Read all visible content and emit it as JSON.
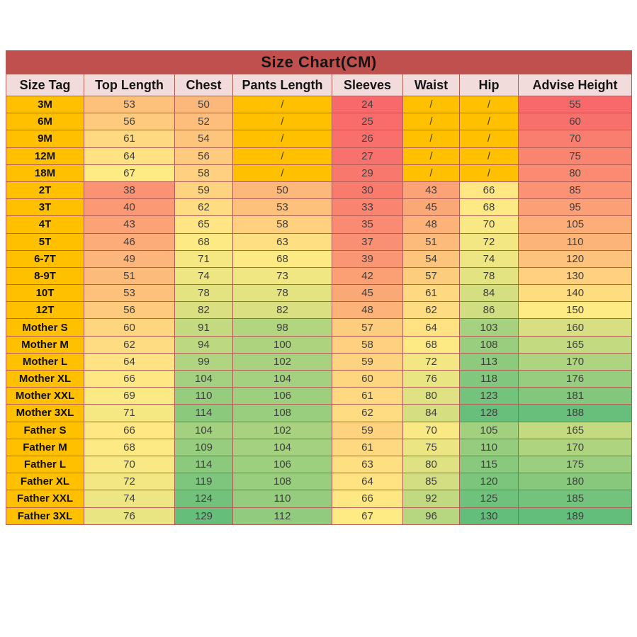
{
  "chart_data": {
    "type": "table",
    "title": "Size Chart(CM)",
    "columns": [
      "Size Tag",
      "Top Length",
      "Chest",
      "Pants Length",
      "Sleeves",
      "Waist",
      "Hip",
      "Advise Height"
    ],
    "rows": [
      {
        "tag": "3M",
        "values": [
          "53",
          "50",
          "/",
          "24",
          "/",
          "/",
          "55"
        ]
      },
      {
        "tag": "6M",
        "values": [
          "56",
          "52",
          "/",
          "25",
          "/",
          "/",
          "60"
        ]
      },
      {
        "tag": "9M",
        "values": [
          "61",
          "54",
          "/",
          "26",
          "/",
          "/",
          "70"
        ]
      },
      {
        "tag": "12M",
        "values": [
          "64",
          "56",
          "/",
          "27",
          "/",
          "/",
          "75"
        ]
      },
      {
        "tag": "18M",
        "values": [
          "67",
          "58",
          "/",
          "29",
          "/",
          "/",
          "80"
        ]
      },
      {
        "tag": "2T",
        "values": [
          "38",
          "59",
          "50",
          "30",
          "43",
          "66",
          "85"
        ]
      },
      {
        "tag": "3T",
        "values": [
          "40",
          "62",
          "53",
          "33",
          "45",
          "68",
          "95"
        ]
      },
      {
        "tag": "4T",
        "values": [
          "43",
          "65",
          "58",
          "35",
          "48",
          "70",
          "105"
        ]
      },
      {
        "tag": "5T",
        "values": [
          "46",
          "68",
          "63",
          "37",
          "51",
          "72",
          "110"
        ]
      },
      {
        "tag": "6-7T",
        "values": [
          "49",
          "71",
          "68",
          "39",
          "54",
          "74",
          "120"
        ]
      },
      {
        "tag": "8-9T",
        "values": [
          "51",
          "74",
          "73",
          "42",
          "57",
          "78",
          "130"
        ]
      },
      {
        "tag": "10T",
        "values": [
          "53",
          "78",
          "78",
          "45",
          "61",
          "84",
          "140"
        ]
      },
      {
        "tag": "12T",
        "values": [
          "56",
          "82",
          "82",
          "48",
          "62",
          "86",
          "150"
        ]
      },
      {
        "tag": "Mother S",
        "values": [
          "60",
          "91",
          "98",
          "57",
          "64",
          "103",
          "160"
        ]
      },
      {
        "tag": "Mother M",
        "values": [
          "62",
          "94",
          "100",
          "58",
          "68",
          "108",
          "165"
        ]
      },
      {
        "tag": "Mother L",
        "values": [
          "64",
          "99",
          "102",
          "59",
          "72",
          "113",
          "170"
        ]
      },
      {
        "tag": "Mother XL",
        "values": [
          "66",
          "104",
          "104",
          "60",
          "76",
          "118",
          "176"
        ]
      },
      {
        "tag": "Mother XXL",
        "values": [
          "69",
          "110",
          "106",
          "61",
          "80",
          "123",
          "181"
        ]
      },
      {
        "tag": "Mother 3XL",
        "values": [
          "71",
          "114",
          "108",
          "62",
          "84",
          "128",
          "188"
        ]
      },
      {
        "tag": "Father S",
        "values": [
          "66",
          "104",
          "102",
          "59",
          "70",
          "105",
          "165"
        ]
      },
      {
        "tag": "Father M",
        "values": [
          "68",
          "109",
          "104",
          "61",
          "75",
          "110",
          "170"
        ]
      },
      {
        "tag": "Father L",
        "values": [
          "70",
          "114",
          "106",
          "63",
          "80",
          "115",
          "175"
        ]
      },
      {
        "tag": "Father XL",
        "values": [
          "72",
          "119",
          "108",
          "64",
          "85",
          "120",
          "180"
        ]
      },
      {
        "tag": "Father XXL",
        "values": [
          "74",
          "124",
          "110",
          "66",
          "92",
          "125",
          "185"
        ]
      },
      {
        "tag": "Father 3XL",
        "values": [
          "76",
          "129",
          "112",
          "67",
          "96",
          "130",
          "189"
        ]
      }
    ]
  },
  "colors": {
    "title_bg": "#C0504D",
    "title_text": "#141414",
    "header_bg": "#F2DCDB",
    "header_text": "#141414",
    "tag_bg": "#FFC000",
    "slash_bg": "#FFC000",
    "border": "#B05E56",
    "value_text": "#3F3F3F",
    "conditional_format": {
      "min_color": "#F8696B",
      "mid_color": "#FFEB84",
      "max_color": "#63BE7B",
      "measurement_scale": {
        "min": 24,
        "mid": 67,
        "max": 130
      },
      "advise_height_scale": {
        "min": 55,
        "mid": 150,
        "max": 189
      }
    }
  }
}
